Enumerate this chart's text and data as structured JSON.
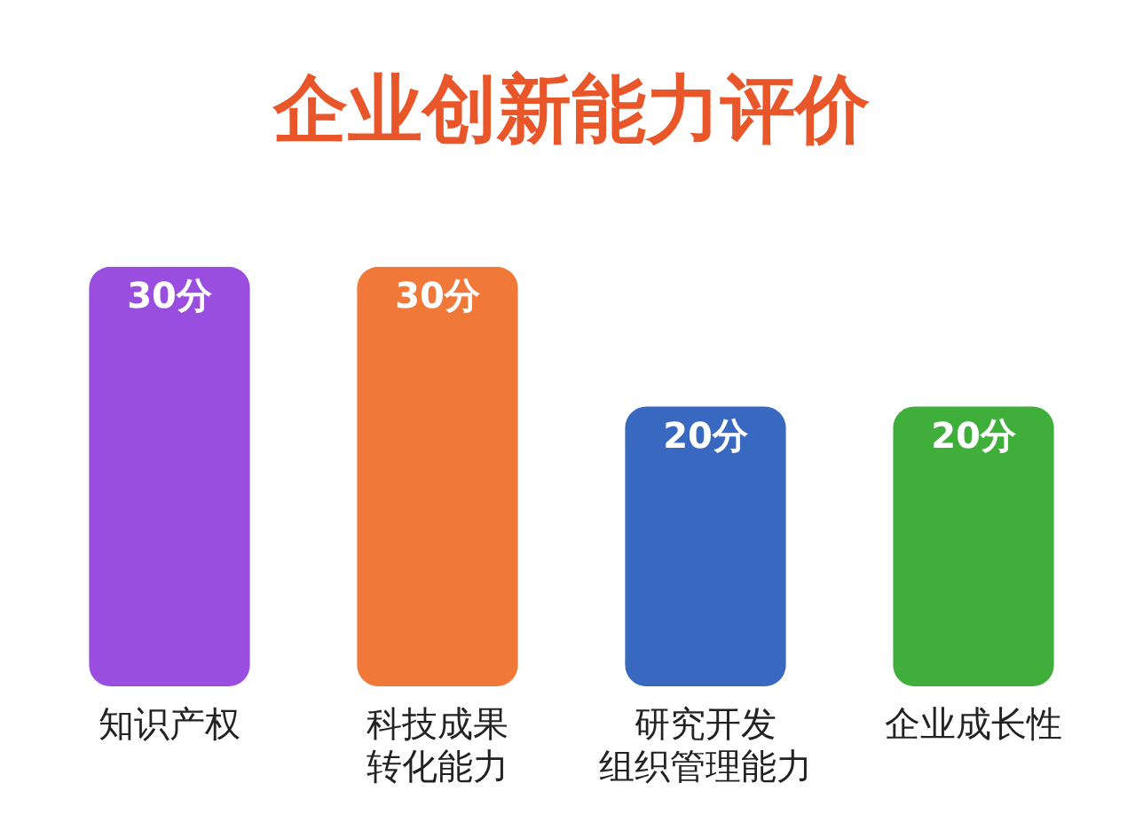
{
  "chart_data": {
    "type": "bar",
    "title": "企业创新能力评价",
    "categories": [
      "知识产权",
      "科技成果转化能力",
      "研究开发组织管理能力",
      "企业成长性"
    ],
    "values": [
      30,
      30,
      20,
      20
    ],
    "colors": [
      "#9a4ee0",
      "#f0793a",
      "#3868c0",
      "#3fae3a"
    ],
    "value_labels": [
      "30分",
      "30分",
      "20分",
      "20分"
    ]
  }
}
